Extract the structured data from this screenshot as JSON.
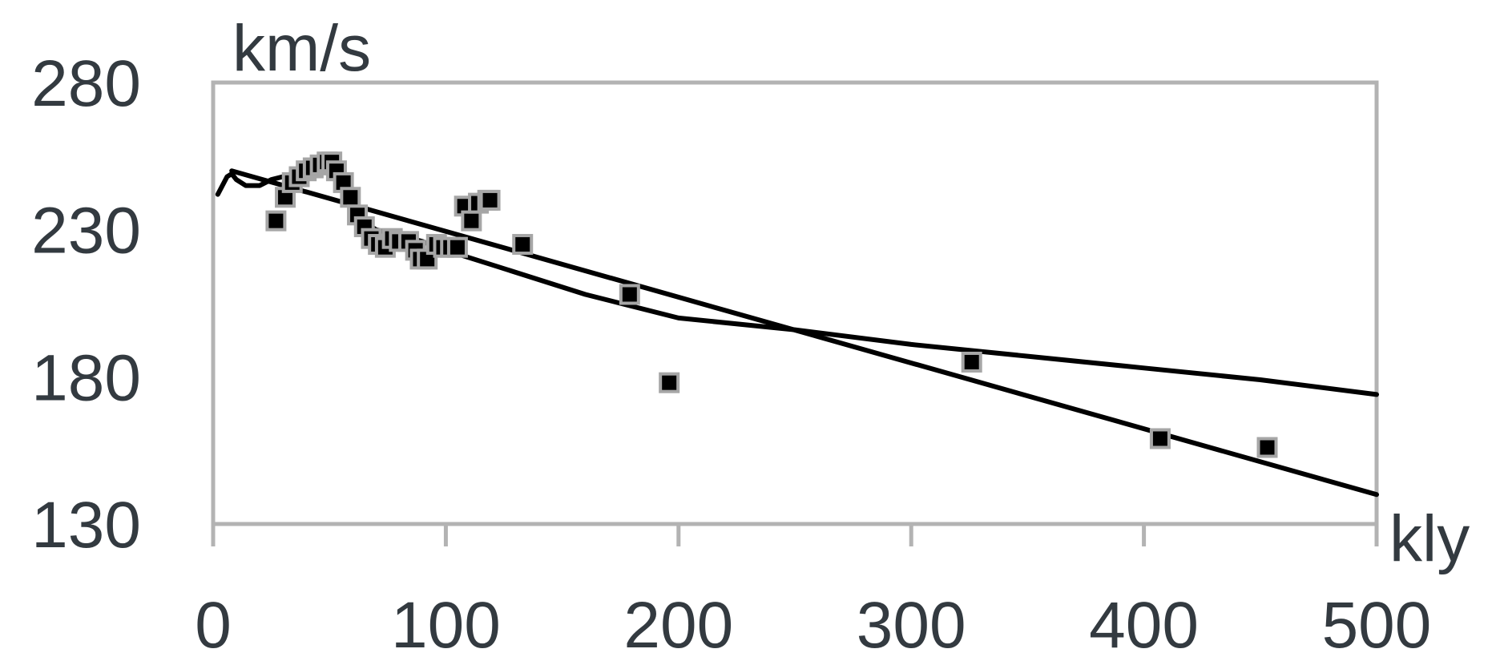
{
  "chart_data": {
    "type": "scatter",
    "title": "",
    "xlabel": "kly",
    "ylabel": "km/s",
    "xlim": [
      0,
      500
    ],
    "ylim": [
      130,
      280
    ],
    "x_ticks": [
      0,
      100,
      200,
      300,
      400,
      500
    ],
    "y_ticks": [
      130,
      180,
      230,
      280
    ],
    "x_tick_labels": [
      "0",
      "100",
      "200",
      "300",
      "400",
      "500"
    ],
    "y_tick_labels": [
      "130",
      "180",
      "230",
      "280"
    ],
    "grid": false,
    "legend": "none",
    "series": [
      {
        "kind": "points",
        "values": [
          [
            27,
            233
          ],
          [
            31,
            241
          ],
          [
            34,
            246
          ],
          [
            37,
            248
          ],
          [
            40,
            250
          ],
          [
            43,
            251
          ],
          [
            46,
            252
          ],
          [
            49,
            253
          ],
          [
            51,
            253
          ],
          [
            53,
            250
          ],
          [
            56,
            246
          ],
          [
            59,
            241
          ],
          [
            62,
            235
          ],
          [
            65,
            231
          ],
          [
            68,
            227
          ],
          [
            71,
            225
          ],
          [
            74,
            224
          ],
          [
            77,
            227
          ],
          [
            80,
            226
          ],
          [
            84,
            226
          ],
          [
            87,
            223
          ],
          [
            89,
            220
          ],
          [
            92,
            220
          ],
          [
            96,
            225
          ],
          [
            99,
            224
          ],
          [
            102,
            224
          ],
          [
            105,
            224
          ],
          [
            108,
            238
          ],
          [
            111,
            233
          ],
          [
            114,
            239
          ],
          [
            118,
            240
          ],
          [
            119,
            240
          ],
          [
            133,
            225
          ],
          [
            179,
            208
          ],
          [
            196,
            178
          ],
          [
            326,
            185
          ],
          [
            407,
            159
          ],
          [
            453,
            156
          ]
        ]
      },
      {
        "kind": "line",
        "values": [
          [
            2,
            242
          ],
          [
            6,
            248
          ],
          [
            8,
            249
          ],
          [
            10,
            247
          ],
          [
            14,
            245
          ],
          [
            20,
            245
          ],
          [
            25,
            247
          ],
          [
            30,
            248
          ],
          [
            34,
            249
          ],
          [
            38,
            250
          ],
          [
            42,
            251
          ],
          [
            46,
            252
          ],
          [
            50,
            251
          ],
          [
            54,
            248
          ],
          [
            58,
            243
          ],
          [
            62,
            236
          ],
          [
            66,
            232
          ],
          [
            70,
            230
          ],
          [
            75,
            229
          ],
          [
            80,
            228
          ],
          [
            90,
            226
          ],
          [
            100,
            223
          ],
          [
            120,
            218
          ],
          [
            160,
            208
          ],
          [
            200,
            200
          ],
          [
            250,
            196
          ],
          [
            300,
            191
          ],
          [
            350,
            187
          ],
          [
            400,
            183
          ],
          [
            450,
            179
          ],
          [
            500,
            174
          ]
        ]
      },
      {
        "kind": "line",
        "values": [
          [
            8,
            250
          ],
          [
            500,
            140
          ]
        ]
      }
    ],
    "colors": {
      "axis": "#b3b3b3",
      "line": "#000000",
      "marker_fill": "#000000",
      "marker_edge": "#a6a6a6",
      "text": "#333a40"
    }
  }
}
